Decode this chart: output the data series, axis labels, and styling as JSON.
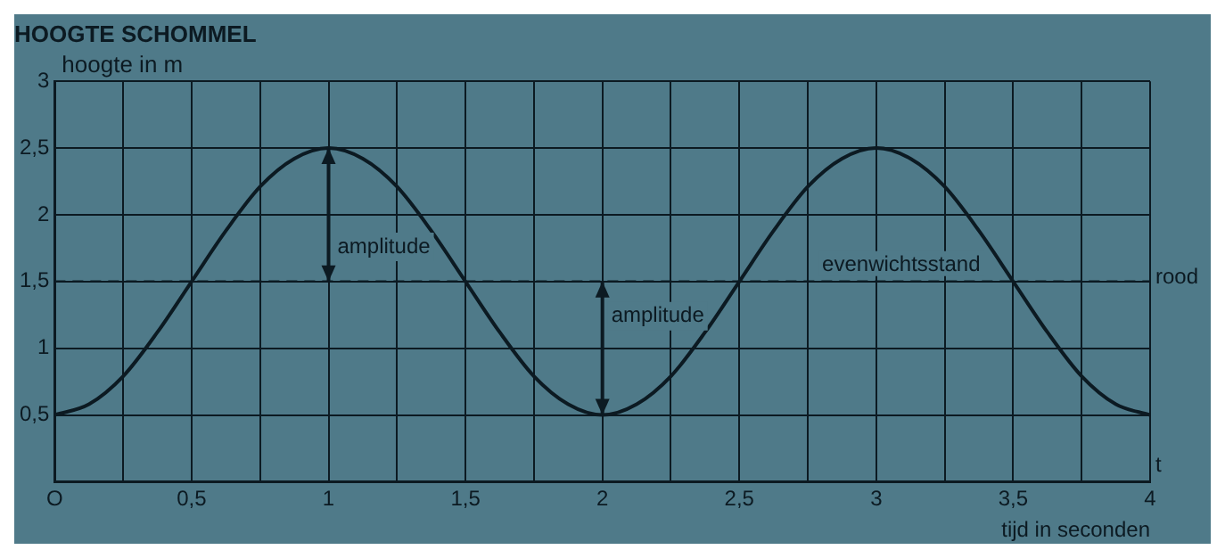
{
  "chart_data": {
    "type": "line",
    "title": "HOOGTE SCHOMMEL",
    "ylabel": "hoogte in m",
    "xlabel": "tijd in seconden",
    "series": [
      {
        "color": "#0c1a22",
        "x": [
          0,
          0.125,
          0.25,
          0.375,
          0.5,
          0.625,
          0.75,
          0.875,
          1,
          1.125,
          1.25,
          1.375,
          1.5,
          1.625,
          1.75,
          1.875,
          2,
          2.125,
          2.25,
          2.375,
          2.5,
          2.625,
          2.75,
          2.875,
          3,
          3.125,
          3.25,
          3.375,
          3.5,
          3.625,
          3.75,
          3.875,
          4
        ],
        "values": [
          0.5,
          0.58,
          0.79,
          1.12,
          1.5,
          1.88,
          2.21,
          2.42,
          2.5,
          2.42,
          2.21,
          1.88,
          1.5,
          1.12,
          0.79,
          0.58,
          0.5,
          0.58,
          0.79,
          1.12,
          1.5,
          1.88,
          2.21,
          2.42,
          2.5,
          2.42,
          2.21,
          1.88,
          1.5,
          1.12,
          0.79,
          0.58,
          0.5
        ]
      }
    ],
    "xlim": [
      0,
      4
    ],
    "ylim": [
      0,
      3
    ],
    "xticks": [
      {
        "value": 0,
        "label": "O"
      },
      {
        "value": 0.25,
        "label": null
      },
      {
        "value": 0.5,
        "label": "0,5"
      },
      {
        "value": 0.75,
        "label": null
      },
      1,
      {
        "value": 1.25,
        "label": null
      },
      {
        "value": 1.5,
        "label": "1,5"
      },
      {
        "value": 1.75,
        "label": null
      },
      2,
      {
        "value": 2.25,
        "label": null
      },
      {
        "value": 2.5,
        "label": "2,5"
      },
      {
        "value": 2.75,
        "label": null
      },
      3,
      {
        "value": 3.25,
        "label": null
      },
      {
        "value": 3.5,
        "label": "3,5"
      },
      {
        "value": 3.75,
        "label": null
      },
      4
    ],
    "yticks": [
      {
        "value": 0,
        "label": null
      },
      {
        "value": 0.5,
        "label": "0,5"
      },
      1,
      {
        "value": 1.5,
        "label": "1,5"
      },
      2,
      {
        "value": 2.5,
        "label": "2,5"
      },
      3
    ],
    "grid": true,
    "marker": "none",
    "line_style": "solid",
    "legend": false,
    "ref_lines": [
      {
        "axis": "y",
        "value": 1.5,
        "label": "evenwichtsstand",
        "color": "#0c1a22",
        "line_style": "dashed"
      }
    ],
    "annotations": [
      {
        "text": "amplitude",
        "x": 1,
        "y": 2.5
      },
      {
        "text": "amplitude",
        "x": 2,
        "y": 0.5
      },
      "rood",
      "t"
    ]
  }
}
